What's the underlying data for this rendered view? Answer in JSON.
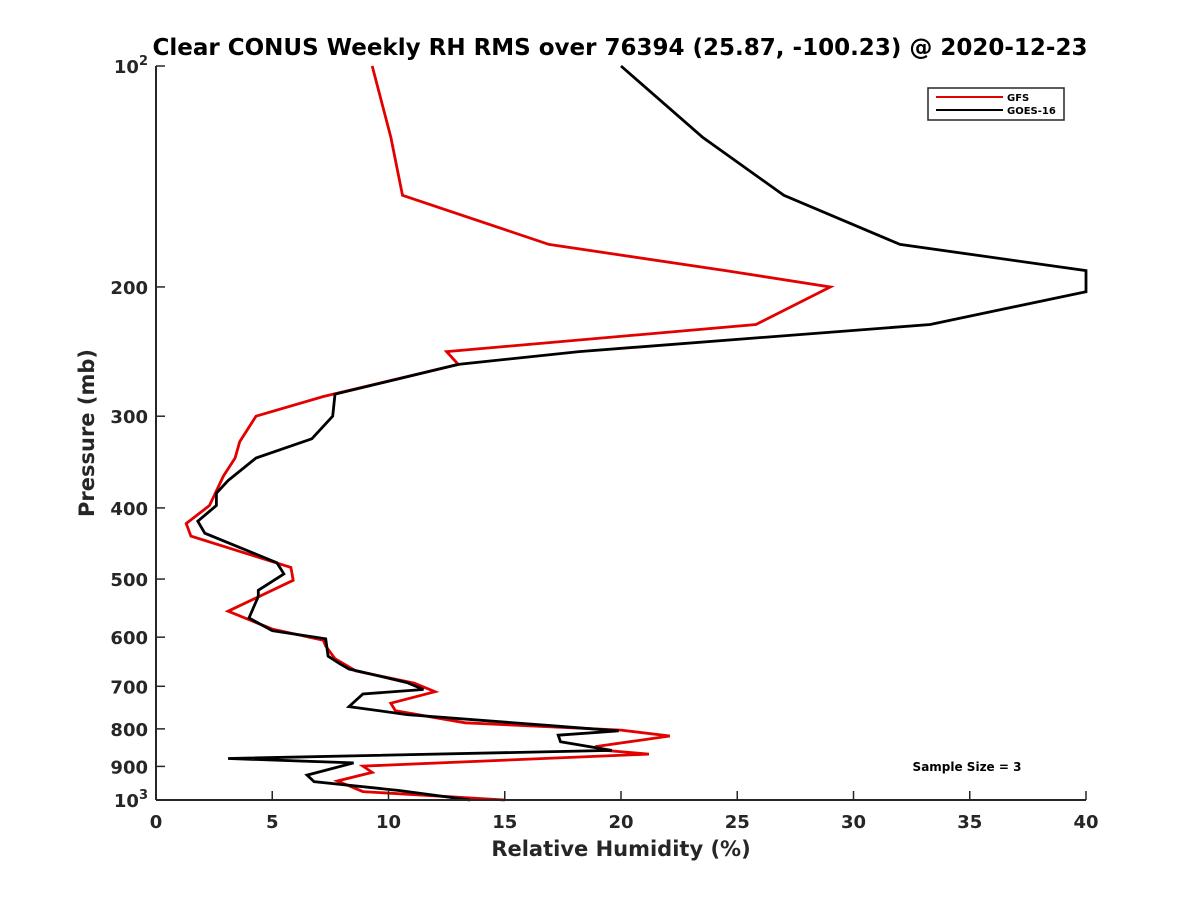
{
  "chart_data": {
    "type": "line",
    "title": "Clear CONUS Weekly RH RMS over 76394 (25.87, -100.23) @ 2020-12-23",
    "xlabel": "Relative Humidity (%)",
    "ylabel": "Pressure (mb)",
    "xlim": [
      0,
      40
    ],
    "ylim": [
      100,
      1000
    ],
    "y_scale": "log",
    "y_reversed": true,
    "grid": false,
    "legend_position": "top-right",
    "x_ticks": [
      0,
      5,
      10,
      15,
      20,
      25,
      30,
      35,
      40
    ],
    "x_tick_labels": [
      "0",
      "5",
      "10",
      "15",
      "20",
      "25",
      "30",
      "35",
      "40"
    ],
    "y_ticks": [
      100,
      200,
      300,
      400,
      500,
      600,
      700,
      800,
      900,
      1000
    ],
    "y_tick_labels": [
      {
        "base": "10",
        "exp": "2"
      },
      {
        "base": "200"
      },
      {
        "base": "300"
      },
      {
        "base": "400"
      },
      {
        "base": "500"
      },
      {
        "base": "600"
      },
      {
        "base": "700"
      },
      {
        "base": "800"
      },
      {
        "base": "900"
      },
      {
        "base": "10",
        "exp": "3"
      }
    ],
    "annotation": "Sample Size = 3",
    "series": [
      {
        "name": "GFS",
        "color": "#e30000",
        "points": [
          [
            9.3,
            100
          ],
          [
            10.1,
            125
          ],
          [
            10.6,
            150
          ],
          [
            16.9,
            175
          ],
          [
            24.5,
            190
          ],
          [
            29.0,
            200
          ],
          [
            25.8,
            225
          ],
          [
            12.5,
            245
          ],
          [
            13.0,
            255
          ],
          [
            7.2,
            282
          ],
          [
            4.3,
            300
          ],
          [
            3.6,
            325
          ],
          [
            3.4,
            342
          ],
          [
            2.9,
            362
          ],
          [
            2.3,
            397
          ],
          [
            1.3,
            420
          ],
          [
            1.5,
            437
          ],
          [
            5.8,
            482
          ],
          [
            5.9,
            502
          ],
          [
            3.1,
            553
          ],
          [
            5.0,
            585
          ],
          [
            7.2,
            606
          ],
          [
            7.3,
            617
          ],
          [
            7.7,
            642
          ],
          [
            8.6,
            667
          ],
          [
            11.1,
            693
          ],
          [
            12.0,
            712
          ],
          [
            10.1,
            738
          ],
          [
            10.3,
            756
          ],
          [
            13.3,
            785
          ],
          [
            20.0,
            803
          ],
          [
            22.1,
            818
          ],
          [
            19.0,
            845
          ],
          [
            19.2,
            855
          ],
          [
            21.2,
            866
          ],
          [
            8.9,
            899
          ],
          [
            9.3,
            917
          ],
          [
            7.8,
            942
          ],
          [
            8.9,
            974
          ],
          [
            15.0,
            1000
          ]
        ]
      },
      {
        "name": "GOES-16",
        "color": "#000000",
        "points": [
          [
            20.0,
            100
          ],
          [
            23.5,
            125
          ],
          [
            27.0,
            150
          ],
          [
            32.0,
            175
          ],
          [
            40.0,
            190
          ],
          [
            40.0,
            203
          ],
          [
            33.3,
            225
          ],
          [
            18.2,
            245
          ],
          [
            13.0,
            255
          ],
          [
            7.7,
            280
          ],
          [
            7.6,
            300
          ],
          [
            6.7,
            322
          ],
          [
            4.3,
            342
          ],
          [
            3.1,
            367
          ],
          [
            2.6,
            382
          ],
          [
            2.6,
            397
          ],
          [
            1.8,
            417
          ],
          [
            2.1,
            433
          ],
          [
            5.2,
            475
          ],
          [
            5.5,
            492
          ],
          [
            4.4,
            518
          ],
          [
            4.4,
            528
          ],
          [
            4.0,
            565
          ],
          [
            5.0,
            588
          ],
          [
            7.3,
            603
          ],
          [
            7.4,
            637
          ],
          [
            7.9,
            652
          ],
          [
            8.3,
            663
          ],
          [
            10.8,
            692
          ],
          [
            11.5,
            707
          ],
          [
            8.9,
            717
          ],
          [
            8.3,
            746
          ],
          [
            10.8,
            765
          ],
          [
            17.0,
            792
          ],
          [
            19.9,
            805
          ],
          [
            17.3,
            816
          ],
          [
            17.4,
            833
          ],
          [
            19.6,
            856
          ],
          [
            3.1,
            878
          ],
          [
            8.5,
            890
          ],
          [
            6.5,
            925
          ],
          [
            6.8,
            944
          ],
          [
            10.5,
            971
          ],
          [
            13.5,
            1000
          ]
        ]
      }
    ]
  }
}
